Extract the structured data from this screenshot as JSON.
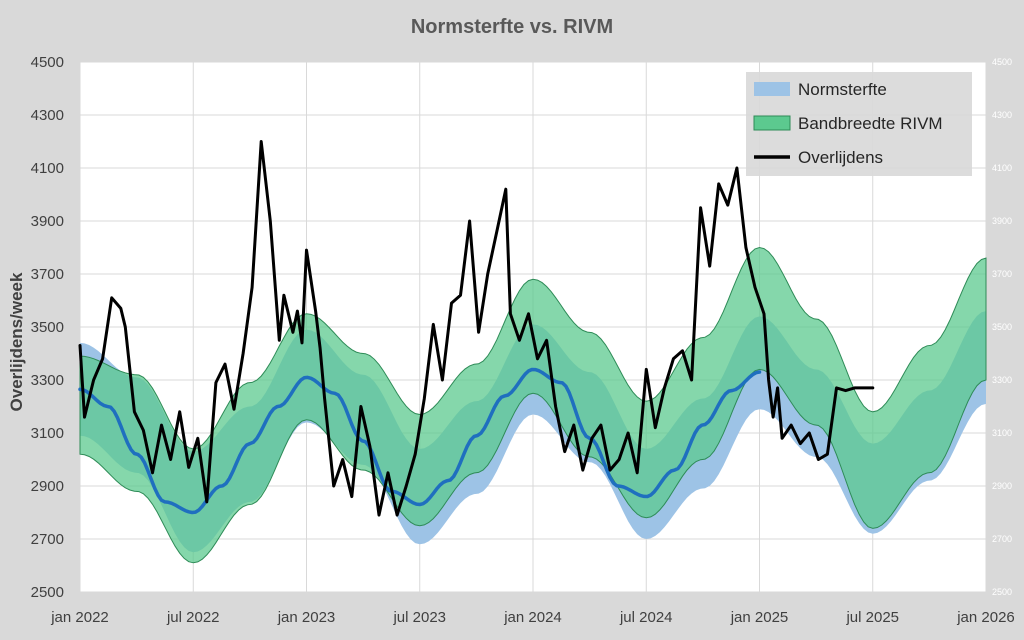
{
  "chart_data": {
    "type": "line",
    "title": "Normsterfte vs. RIVM",
    "ylabel": "Overlijdens/week",
    "ylim": [
      2500,
      4500
    ],
    "y_ticks": [
      "2500",
      "2700",
      "2900",
      "3100",
      "3300",
      "3500",
      "3700",
      "3900",
      "4100",
      "4300",
      "4500"
    ],
    "x_ticks": [
      "jan 2022",
      "jul 2022",
      "jan 2023",
      "jul 2023",
      "jan 2024",
      "jul 2024",
      "jan 2025",
      "jul 2025",
      "jan 2026"
    ],
    "grid": true,
    "legend_position": "top-right",
    "legend": [
      {
        "name": "Normsterfte",
        "color": "#9dc3e6",
        "kind": "band"
      },
      {
        "name": "Bandbreedte RIVM",
        "color": "#5cc98f",
        "kind": "band"
      },
      {
        "name": "Overlijdens",
        "color": "#000000",
        "kind": "line"
      }
    ],
    "series": [
      {
        "name": "Normsterfte",
        "kind": "band",
        "color": "#9dc3e6",
        "x": [
          2022.0,
          2022.25,
          2022.5,
          2022.75,
          2023.0,
          2023.25,
          2023.5,
          2023.75,
          2024.0,
          2024.25,
          2024.5,
          2024.75,
          2025.0,
          2025.25,
          2025.5,
          2025.75,
          2026.0
        ],
        "lower": [
          3090,
          2950,
          2650,
          2840,
          3140,
          2980,
          2680,
          2870,
          3170,
          2990,
          2700,
          2890,
          3190,
          3010,
          2720,
          2920,
          3210
        ],
        "upper": [
          3440,
          3310,
          3030,
          3200,
          3490,
          3320,
          3040,
          3220,
          3510,
          3330,
          3040,
          3230,
          3540,
          3340,
          3060,
          3260,
          3560
        ]
      },
      {
        "name": "Bandbreedte RIVM",
        "kind": "band",
        "color": "#5cc98f",
        "x": [
          2022.0,
          2022.25,
          2022.5,
          2022.75,
          2023.0,
          2023.25,
          2023.5,
          2023.75,
          2024.0,
          2024.25,
          2024.5,
          2024.75,
          2025.0,
          2025.25,
          2025.5,
          2025.75,
          2026.0
        ],
        "lower": [
          3020,
          2880,
          2610,
          2830,
          3150,
          2960,
          2750,
          2950,
          3250,
          3010,
          2780,
          3000,
          3340,
          3130,
          2740,
          2950,
          3300
        ],
        "upper": [
          3390,
          3320,
          3040,
          3290,
          3550,
          3400,
          3170,
          3360,
          3680,
          3480,
          3220,
          3460,
          3800,
          3530,
          3180,
          3430,
          3760
        ]
      },
      {
        "name": "Normsterfte-lijn",
        "kind": "line",
        "color": "#1f6fbf",
        "x": [
          2022.0,
          2022.125,
          2022.25,
          2022.375,
          2022.5,
          2022.625,
          2022.75,
          2022.875,
          2023.0,
          2023.125,
          2023.25,
          2023.375,
          2023.5,
          2023.625,
          2023.75,
          2023.875,
          2024.0,
          2024.125,
          2024.25,
          2024.375,
          2024.5,
          2024.625,
          2024.75,
          2024.875,
          2025.0
        ],
        "y": [
          3265,
          3200,
          3020,
          2840,
          2800,
          2900,
          3060,
          3200,
          3310,
          3250,
          3070,
          2880,
          2830,
          2920,
          3090,
          3240,
          3340,
          3290,
          3080,
          2900,
          2860,
          2960,
          3130,
          3260,
          3330
        ]
      },
      {
        "name": "Overlijdens",
        "kind": "line",
        "color": "#000000",
        "x": [
          2022.0,
          2022.02,
          2022.06,
          2022.1,
          2022.14,
          2022.18,
          2022.2,
          2022.24,
          2022.28,
          2022.32,
          2022.36,
          2022.4,
          2022.44,
          2022.48,
          2022.52,
          2022.56,
          2022.6,
          2022.64,
          2022.68,
          2022.72,
          2022.76,
          2022.8,
          2022.84,
          2022.88,
          2022.9,
          2022.94,
          2022.96,
          2022.98,
          2023.0,
          2023.04,
          2023.06,
          2023.08,
          2023.12,
          2023.16,
          2023.2,
          2023.24,
          2023.28,
          2023.32,
          2023.36,
          2023.4,
          2023.44,
          2023.48,
          2023.52,
          2023.56,
          2023.6,
          2023.64,
          2023.68,
          2023.72,
          2023.76,
          2023.8,
          2023.84,
          2023.88,
          2023.9,
          2023.94,
          2023.98,
          2024.02,
          2024.06,
          2024.1,
          2024.14,
          2024.18,
          2024.22,
          2024.26,
          2024.3,
          2024.34,
          2024.38,
          2024.42,
          2024.46,
          2024.5,
          2024.54,
          2024.58,
          2024.62,
          2024.66,
          2024.7,
          2024.74,
          2024.78,
          2024.82,
          2024.86,
          2024.9,
          2024.94,
          2024.98,
          2025.02,
          2025.04,
          2025.06,
          2025.08,
          2025.1,
          2025.14,
          2025.18,
          2025.22,
          2025.26,
          2025.3,
          2025.34,
          2025.38,
          2025.42,
          2025.46,
          2025.5
        ],
        "y": [
          3430,
          3160,
          3300,
          3380,
          3610,
          3570,
          3500,
          3180,
          3110,
          2950,
          3130,
          3000,
          3180,
          2970,
          3080,
          2840,
          3290,
          3360,
          3190,
          3400,
          3650,
          4200,
          3900,
          3450,
          3620,
          3480,
          3560,
          3440,
          3790,
          3560,
          3420,
          3230,
          2900,
          3000,
          2860,
          3200,
          3050,
          2790,
          2950,
          2790,
          2900,
          3020,
          3230,
          3510,
          3300,
          3590,
          3620,
          3900,
          3480,
          3700,
          3860,
          4020,
          3550,
          3450,
          3550,
          3380,
          3450,
          3200,
          3030,
          3130,
          2960,
          3080,
          3130,
          2960,
          3000,
          3100,
          2950,
          3340,
          3120,
          3270,
          3380,
          3410,
          3300,
          3950,
          3730,
          4040,
          3960,
          4100,
          3800,
          3650,
          3550,
          3300,
          3160,
          3270,
          3080,
          3130,
          3060,
          3100,
          3000,
          3020,
          3270,
          3260,
          3270,
          3270,
          3270
        ],
        "y_note": ""
      }
    ]
  }
}
